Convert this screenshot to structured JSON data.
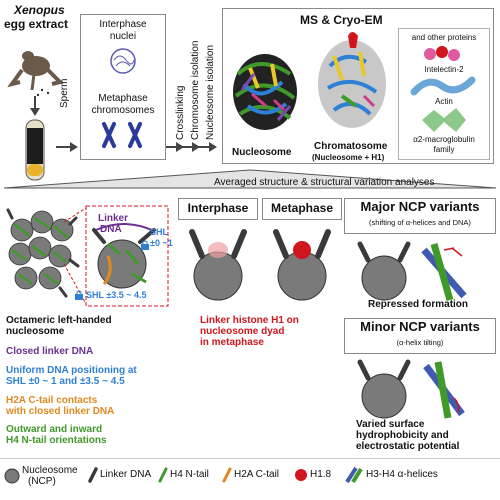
{
  "top": {
    "title_line1": "Xenopus",
    "title_line2": "egg extract",
    "sperm": "Sperm",
    "interphase_nuclei_line1": "Interphase",
    "interphase_nuclei_line2": "nuclei",
    "metaphase_chr_line1": "Metaphase",
    "metaphase_chr_line2": "chromosomes",
    "step_crosslinking": "Crosslinking",
    "step_chromosome": "Chromosome isolation",
    "step_nucleosome": "Nucleosome isolation",
    "ms_title": "MS & Cryo-EM",
    "nucleosome_label": "Nucleosome",
    "chromatosome_label": "Chromatosome",
    "chromatosome_sub": "(Nucleosome + H1)",
    "other_proteins": "and other proteins",
    "intelectin": "Intelectin-2",
    "actin": "Actin",
    "macroglobulin_line1": "α2-macroglobulin",
    "macroglobulin_line2": "family"
  },
  "banner": "Averaged structure & structural variation analyses",
  "left": {
    "linker_dna_line1": "Linker",
    "linker_dna_line2": "DNA",
    "shl_top_line1": "SHL",
    "shl_top_line2": "±0 ~1",
    "shl_bottom": "SHL ±3.5 ~ 4.5",
    "octameric_line1": "Octameric left-handed",
    "octameric_line2": "nucleosome",
    "closed_linker": "Closed linker DNA",
    "uniform_line1": "Uniform DNA positioning at",
    "uniform_line2": "SHL ±0 ~ 1 and ±3.5 ~ 4.5",
    "h2a_line1": "H2A C-tail contacts",
    "h2a_line2": "with closed linker DNA",
    "h4_line1": "Outward and inward",
    "h4_line2": "H4 N-tail orientations"
  },
  "middle": {
    "interphase": "Interphase",
    "metaphase": "Metaphase",
    "h1_line1": "Linker histone H1 on",
    "h1_line2": "nucleosome dyad",
    "h1_line3": "in metaphase"
  },
  "right": {
    "major_title": "Major NCP variants",
    "major_sub": "(shifting of α-helices and DNA)",
    "repressed": "Repressed formation",
    "minor_title": "Minor NCP variants",
    "minor_sub": "(α-helix tilting)",
    "varied_line1": "Varied surface",
    "varied_line2": "hydrophobicity and",
    "varied_line3": "electrostatic potential"
  },
  "legend": {
    "ncp_line1": "Nucleosome",
    "ncp_line2": "(NCP)",
    "linker": "Linker DNA",
    "h4": "H4 N-tail",
    "h2a": "H2A C-tail",
    "h18": "H1.8",
    "helices": "H3-H4 α-helices"
  },
  "colors": {
    "purple": "#6a2f91",
    "blue": "#2e7fd6",
    "orange": "#e08a1e",
    "green": "#3f9a2a",
    "red": "#d0161c",
    "ncp_gray": "#7a7a7a",
    "dna_dark": "#3a3a3a"
  }
}
